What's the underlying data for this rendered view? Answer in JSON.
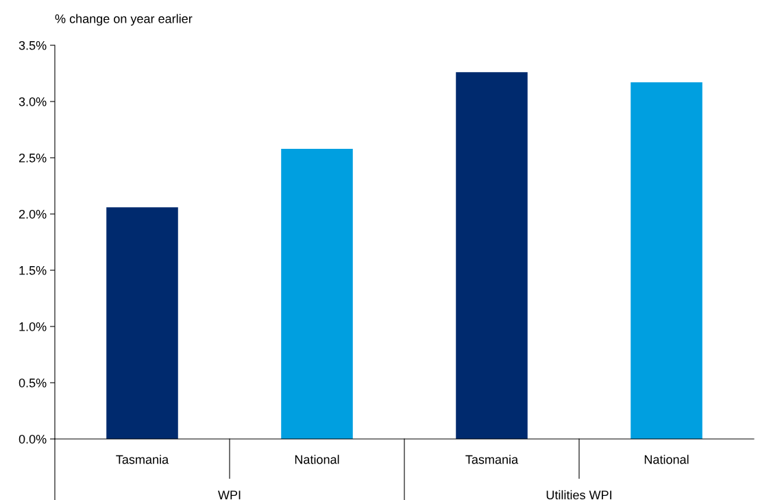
{
  "chart_data": {
    "type": "bar",
    "ylabel": "% change on year earlier",
    "categories": [
      "Tasmania",
      "National",
      "Tasmania",
      "National"
    ],
    "values": [
      2.06,
      2.58,
      3.26,
      3.17
    ],
    "colors": [
      "#002a6e",
      "#009fe0",
      "#002a6e",
      "#009fe0"
    ],
    "annotations": [
      "WPI",
      "Utilities WPI"
    ],
    "ylim": [
      0,
      3.5
    ],
    "yticks": [
      {
        "value": 0,
        "label": "0.0%"
      },
      {
        "value": 0.5,
        "label": "0.5%"
      },
      {
        "value": 1,
        "label": "1.0%"
      },
      {
        "value": 1.5,
        "label": "1.5%"
      },
      {
        "value": 2,
        "label": "2.0%"
      },
      {
        "value": 2.5,
        "label": "2.5%"
      },
      {
        "value": 3,
        "label": "3.0%"
      },
      {
        "value": 3.5,
        "label": "3.5%"
      }
    ],
    "grid": false,
    "legend": false
  }
}
